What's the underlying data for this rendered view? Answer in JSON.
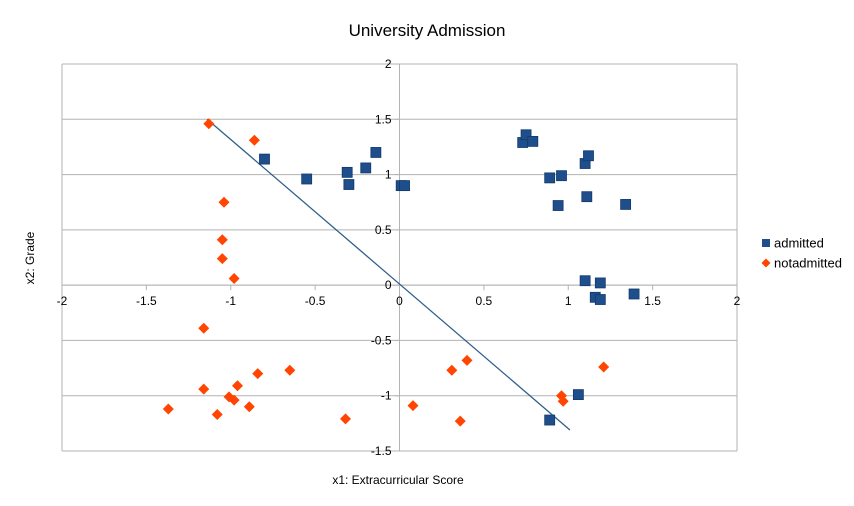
{
  "chart_data": {
    "type": "scatter",
    "title": "University Admission",
    "xlabel": "x1: Extracurricular Score",
    "ylabel": "x2: Grade",
    "xlim": [
      -2,
      2
    ],
    "ylim": [
      -1.5,
      2
    ],
    "x_ticks": [
      "-2",
      "-1.5",
      "-1",
      "-0.5",
      "0",
      "0.5",
      "1",
      "1.5",
      "2"
    ],
    "y_ticks": [
      "2",
      "1.5",
      "1",
      "0.5",
      "0",
      "-0.5",
      "-1",
      "-1.5"
    ],
    "grid": "horizontal",
    "legend_position": "right",
    "series": [
      {
        "name": "admitted",
        "marker": "square",
        "color": "#1f4e8c",
        "points": [
          [
            -0.8,
            1.14
          ],
          [
            -0.55,
            0.96
          ],
          [
            -0.31,
            1.02
          ],
          [
            -0.3,
            0.91
          ],
          [
            -0.2,
            1.06
          ],
          [
            -0.14,
            1.2
          ],
          [
            0.01,
            0.9
          ],
          [
            0.03,
            0.9
          ],
          [
            0.73,
            1.29
          ],
          [
            0.75,
            1.36
          ],
          [
            0.79,
            1.3
          ],
          [
            0.89,
            0.97
          ],
          [
            0.96,
            0.99
          ],
          [
            0.94,
            0.72
          ],
          [
            1.1,
            1.1
          ],
          [
            1.12,
            1.17
          ],
          [
            1.11,
            0.8
          ],
          [
            1.34,
            0.73
          ],
          [
            1.1,
            0.04
          ],
          [
            1.19,
            0.02
          ],
          [
            1.16,
            -0.11
          ],
          [
            1.19,
            -0.13
          ],
          [
            1.39,
            -0.08
          ],
          [
            1.06,
            -0.99
          ],
          [
            0.89,
            -1.22
          ]
        ]
      },
      {
        "name": "notadmitted",
        "marker": "diamond",
        "color": "#ff4500",
        "points": [
          [
            -1.13,
            1.46
          ],
          [
            -0.86,
            1.31
          ],
          [
            -1.04,
            0.75
          ],
          [
            -1.05,
            0.41
          ],
          [
            -1.05,
            0.24
          ],
          [
            -0.98,
            0.06
          ],
          [
            -1.16,
            -0.39
          ],
          [
            -1.16,
            -0.94
          ],
          [
            -0.96,
            -0.91
          ],
          [
            -1.01,
            -1.01
          ],
          [
            -0.98,
            -1.04
          ],
          [
            -0.84,
            -0.8
          ],
          [
            -0.65,
            -0.77
          ],
          [
            -0.89,
            -1.1
          ],
          [
            -1.08,
            -1.17
          ],
          [
            -1.37,
            -1.12
          ],
          [
            -0.32,
            -1.21
          ],
          [
            0.08,
            -1.09
          ],
          [
            0.31,
            -0.77
          ],
          [
            0.4,
            -0.68
          ],
          [
            0.36,
            -1.23
          ],
          [
            0.96,
            -1.0
          ],
          [
            0.97,
            -1.05
          ],
          [
            1.21,
            -0.74
          ]
        ]
      }
    ],
    "decision_line": {
      "from": [
        -1.14,
        1.5
      ],
      "to": [
        1.01,
        -1.31
      ],
      "color": "#2f5f8a"
    }
  }
}
